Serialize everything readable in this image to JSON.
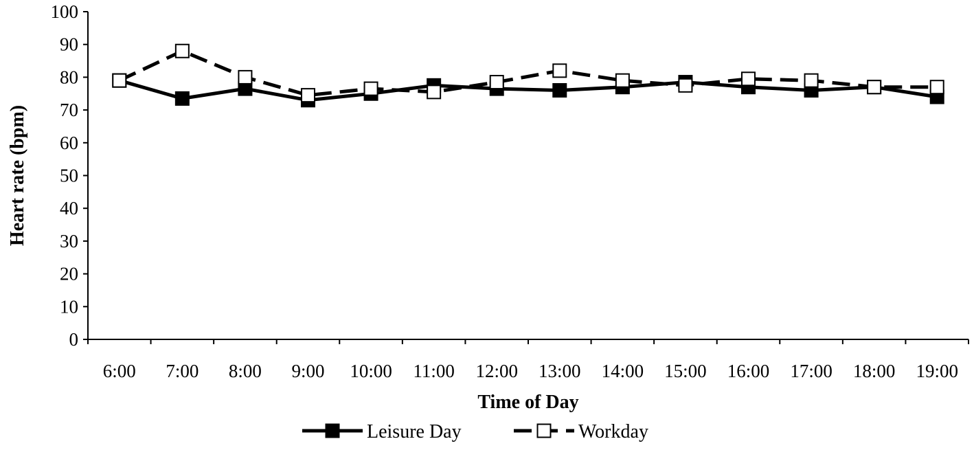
{
  "chart_data": {
    "type": "line",
    "title": "",
    "xlabel": "Time of Day",
    "ylabel": "Heart rate (bpm)",
    "categories": [
      "6:00",
      "7:00",
      "8:00",
      "9:00",
      "10:00",
      "11:00",
      "12:00",
      "13:00",
      "14:00",
      "15:00",
      "16:00",
      "17:00",
      "18:00",
      "19:00"
    ],
    "ylim": [
      0,
      100
    ],
    "yticks": [
      0,
      10,
      20,
      30,
      40,
      50,
      60,
      70,
      80,
      90,
      100
    ],
    "grid": false,
    "legend_position": "bottom",
    "series": [
      {
        "name": "Leisure Day",
        "line_style": "solid",
        "marker": "filled-square",
        "color": "#000000",
        "values": [
          79,
          73.5,
          76.5,
          73,
          75,
          77.5,
          76.5,
          76,
          77,
          78.5,
          77,
          76,
          77,
          74
        ]
      },
      {
        "name": "Workday",
        "line_style": "dashed",
        "marker": "open-square",
        "color": "#000000",
        "values": [
          79,
          88,
          80,
          74.5,
          76.5,
          75.5,
          78.5,
          82,
          79,
          77.5,
          79.5,
          79,
          77,
          77
        ]
      }
    ]
  }
}
